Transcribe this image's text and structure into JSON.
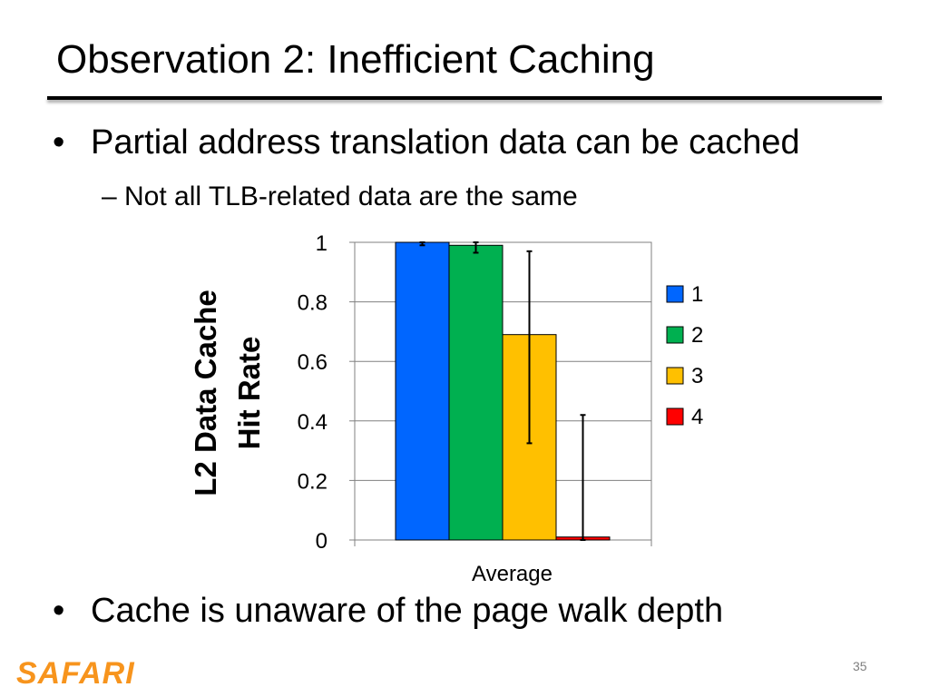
{
  "slide": {
    "title": "Observation 2: Inefficient Caching",
    "bullets": [
      "Partial address translation data can be cached",
      "Cache is unaware of the page walk depth"
    ],
    "bullet_glyph": "•",
    "sub_bullets": [
      "– Not all TLB-related data are the same"
    ],
    "footer_logo": "SAFARI",
    "page_number": "35"
  },
  "chart_data": {
    "type": "bar",
    "categories": [
      "Average"
    ],
    "series": [
      {
        "name": "1",
        "values": [
          1.0
        ],
        "error": [
          0.99,
          1.0
        ],
        "color": "#0066ff"
      },
      {
        "name": "2",
        "values": [
          0.99
        ],
        "error": [
          0.965,
          1.0
        ],
        "color": "#00b050"
      },
      {
        "name": "3",
        "values": [
          0.69
        ],
        "error": [
          0.325,
          0.97
        ],
        "color": "#ffc000"
      },
      {
        "name": "4",
        "values": [
          0.01
        ],
        "error": [
          0.0,
          0.42
        ],
        "color": "#ff0000"
      }
    ],
    "ylabel_lines": [
      "L2 Data Cache",
      "Hit Rate"
    ],
    "ylim": [
      0,
      1
    ],
    "yticks": [
      "0",
      "0.2",
      "0.4",
      "0.6",
      "0.8",
      "1"
    ],
    "ytick_values": [
      0,
      0.2,
      0.4,
      0.6,
      0.8,
      1
    ],
    "grid": true,
    "legend_position": "right"
  }
}
